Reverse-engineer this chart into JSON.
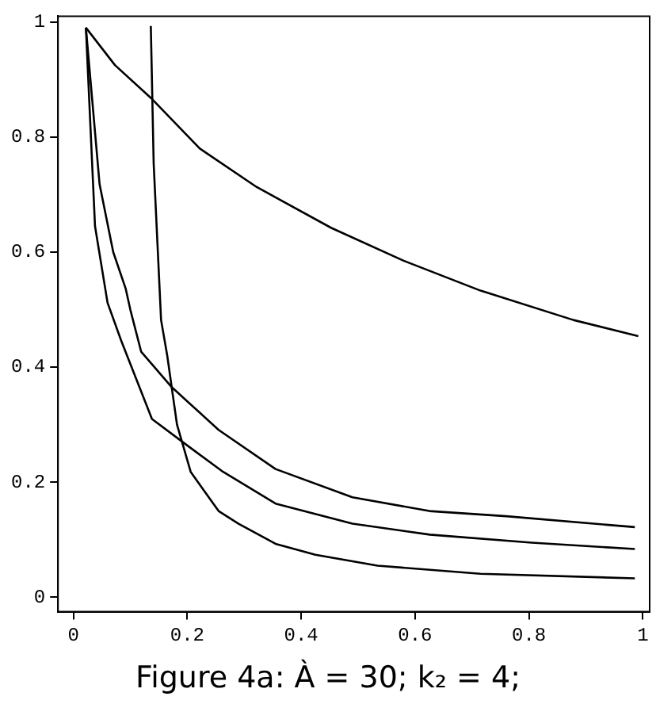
{
  "chart_data": {
    "type": "line",
    "title": "Figure 4a: À = 30; k₂ = 4;",
    "xlim": [
      -0.027,
      1.012
    ],
    "ylim": [
      -0.025,
      1.01
    ],
    "xticks": [
      0,
      0.2,
      0.4,
      0.6,
      0.8,
      1
    ],
    "yticks": [
      0,
      0.2,
      0.4,
      0.6,
      0.8,
      1
    ],
    "grid": false,
    "legend": false,
    "marker": "none",
    "line_style": "solid",
    "series": [
      {
        "color": "#000000",
        "x": [
          0.022,
          0.073,
          0.136,
          0.222,
          0.322,
          0.453,
          0.58,
          0.715,
          0.878,
          0.992
        ],
        "values": [
          0.99,
          0.925,
          0.868,
          0.78,
          0.713,
          0.642,
          0.585,
          0.533,
          0.482,
          0.454
        ]
      },
      {
        "color": "#000000",
        "x": [
          0.022,
          0.046,
          0.07,
          0.092,
          0.1,
          0.119,
          0.173,
          0.255,
          0.355,
          0.49,
          0.625,
          0.76,
          0.986
        ],
        "values": [
          0.99,
          0.718,
          0.6,
          0.536,
          0.5,
          0.427,
          0.365,
          0.291,
          0.223,
          0.174,
          0.15,
          0.141,
          0.122
        ]
      },
      {
        "color": "#000000",
        "x": [
          0.022,
          0.038,
          0.06,
          0.084,
          0.138,
          0.2,
          0.263,
          0.355,
          0.49,
          0.626,
          0.805,
          0.986
        ],
        "values": [
          0.99,
          0.645,
          0.512,
          0.446,
          0.31,
          0.264,
          0.218,
          0.163,
          0.128,
          0.109,
          0.095,
          0.084
        ]
      },
      {
        "color": "#000000",
        "x": [
          0.136,
          0.141,
          0.154,
          0.165,
          0.182,
          0.206,
          0.255,
          0.29,
          0.355,
          0.425,
          0.534,
          0.715,
          0.986
        ],
        "values": [
          0.993,
          0.754,
          0.482,
          0.419,
          0.3,
          0.218,
          0.15,
          0.128,
          0.093,
          0.074,
          0.055,
          0.041,
          0.033
        ]
      }
    ]
  }
}
